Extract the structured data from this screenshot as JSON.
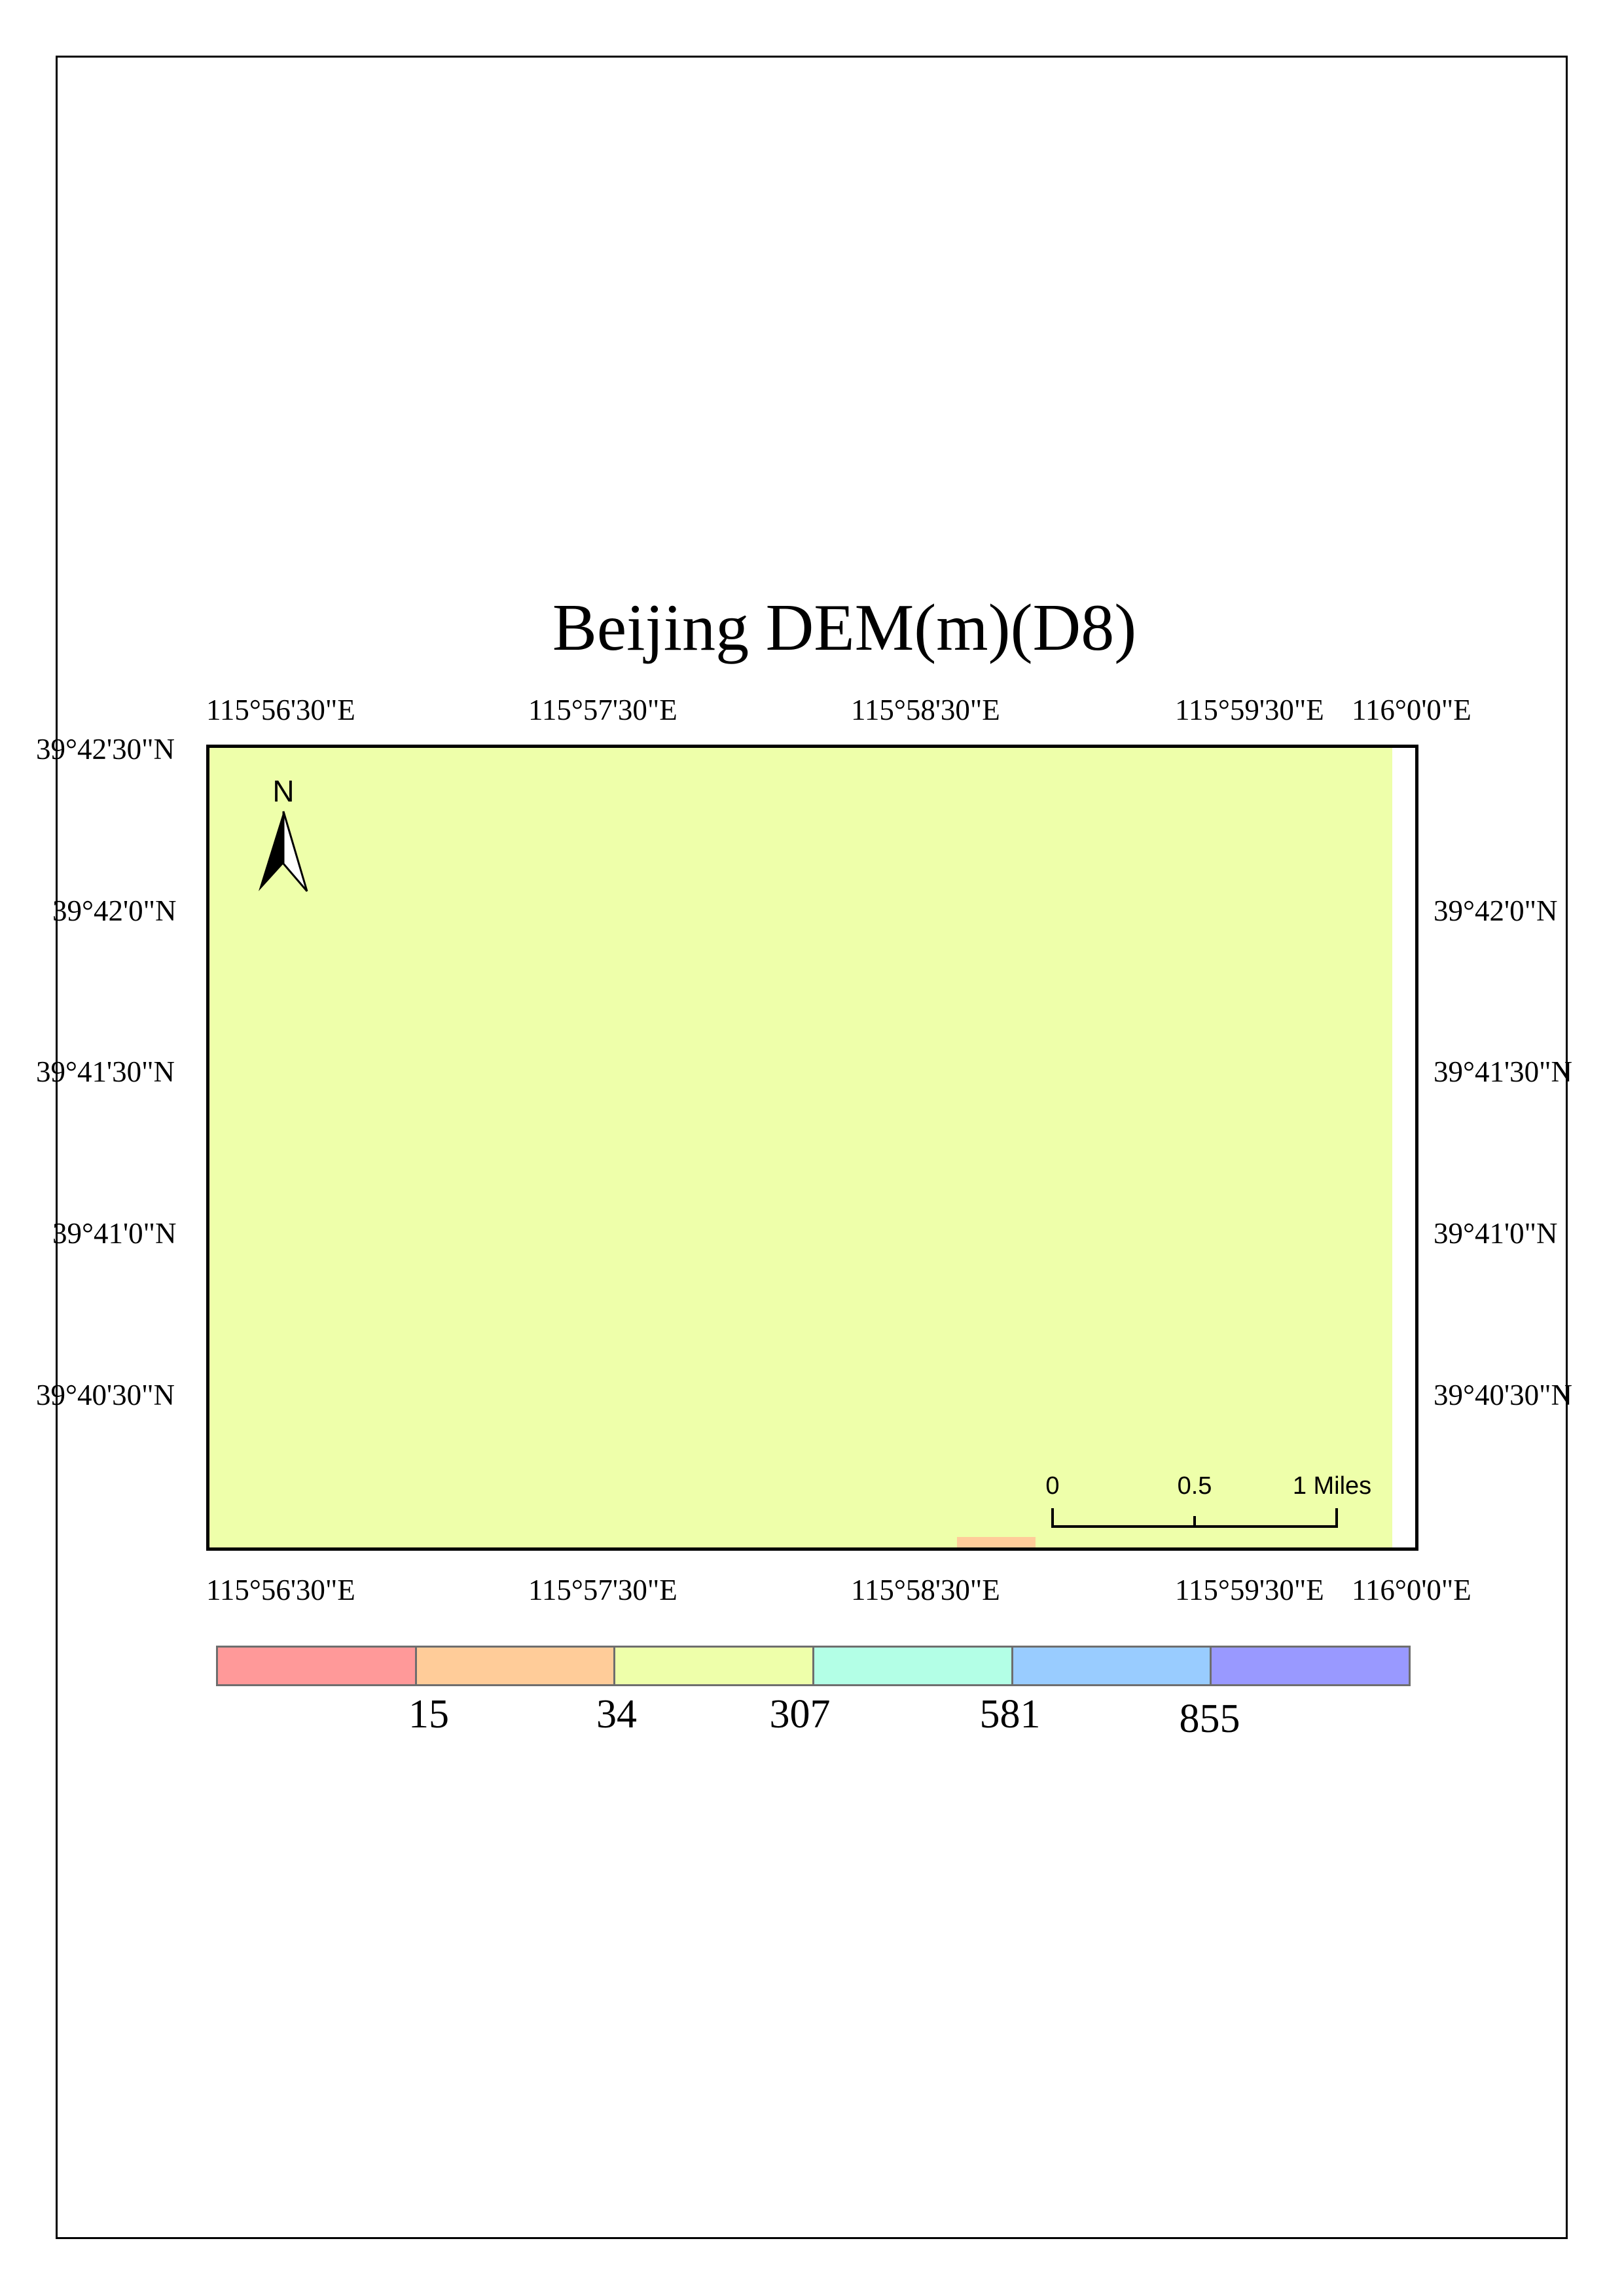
{
  "title": "Beijing DEM(m)(D8)",
  "top_longitude_labels": [
    "115°56'30\"E",
    "115°57'30\"E",
    "115°58'30\"E",
    "115°59'30\"E",
    "116°0'0\"E"
  ],
  "bottom_longitude_labels": [
    "115°56'30\"E",
    "115°57'30\"E",
    "115°58'30\"E",
    "115°59'30\"E",
    "116°0'0\"E"
  ],
  "left_latitude_labels": [
    "39°42'30\"N",
    "39°42'0\"N",
    "39°41'30\"N",
    "39°41'0\"N",
    "39°40'30\"N"
  ],
  "right_latitude_labels": [
    "39°42'0\"N",
    "39°41'30\"N",
    "39°41'0\"N",
    "39°40'30\"N"
  ],
  "north_arrow": {
    "label": "N"
  },
  "scale_bar": {
    "labels": [
      "0",
      "0.5",
      "1 Miles"
    ]
  },
  "legend": {
    "colors": [
      "#ff9999",
      "#ffcc99",
      "#eeffaa",
      "#b3ffe6",
      "#99ccff",
      "#9999ff"
    ],
    "breaks": [
      "15",
      "34",
      "307",
      "581",
      "855"
    ]
  },
  "map_colors": {
    "dem_fill": "#eeffaa",
    "dem_patch": "#ffcc99"
  }
}
